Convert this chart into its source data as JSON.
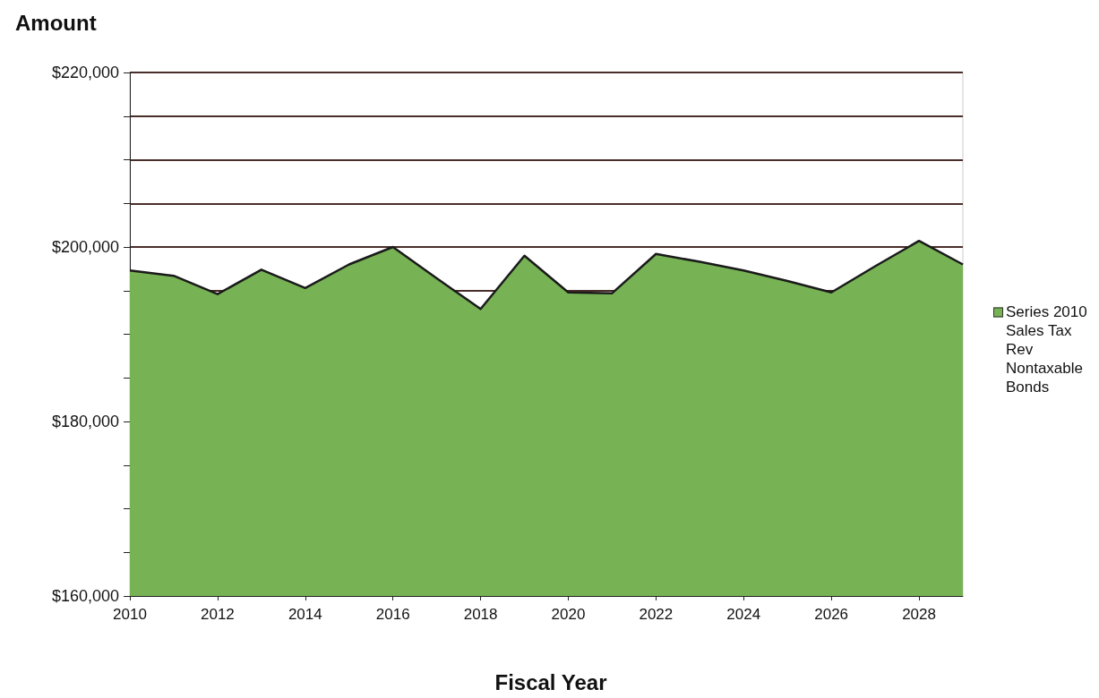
{
  "chart_data": {
    "type": "area",
    "xlabel": "Fiscal Year",
    "ylabel": "Amount",
    "x": [
      2010,
      2011,
      2012,
      2013,
      2014,
      2015,
      2016,
      2017,
      2018,
      2019,
      2020,
      2021,
      2022,
      2023,
      2024,
      2025,
      2026,
      2027,
      2028,
      2029
    ],
    "series": [
      {
        "name": "Series 2010 Sales Tax Rev Nontaxable Bonds",
        "color": "#77b255",
        "values": [
          197300,
          196700,
          194600,
          197400,
          195300,
          198000,
          200000,
          196400,
          192900,
          199000,
          194800,
          194700,
          199200,
          198300,
          197300,
          196100,
          194800,
          197800,
          200700,
          198000
        ]
      }
    ],
    "xlim": [
      2010,
      2029
    ],
    "xticks": [
      2010,
      2012,
      2014,
      2016,
      2018,
      2020,
      2022,
      2024,
      2026,
      2028
    ],
    "ylim": [
      160000,
      220000
    ],
    "yticks": [
      {
        "value": 160000,
        "label": "$160,000"
      },
      {
        "value": 165000,
        "label": null
      },
      {
        "value": 170000,
        "label": null
      },
      {
        "value": 175000,
        "label": null
      },
      {
        "value": 180000,
        "label": "$180,000"
      },
      {
        "value": 185000,
        "label": null
      },
      {
        "value": 190000,
        "label": null
      },
      {
        "value": 195000,
        "label": null
      },
      {
        "value": 200000,
        "label": "$200,000"
      },
      {
        "value": 205000,
        "label": null
      },
      {
        "value": 210000,
        "label": null
      },
      {
        "value": 215000,
        "label": null
      },
      {
        "value": 220000,
        "label": "$220,000"
      }
    ],
    "grid": "y",
    "legend": "right"
  }
}
